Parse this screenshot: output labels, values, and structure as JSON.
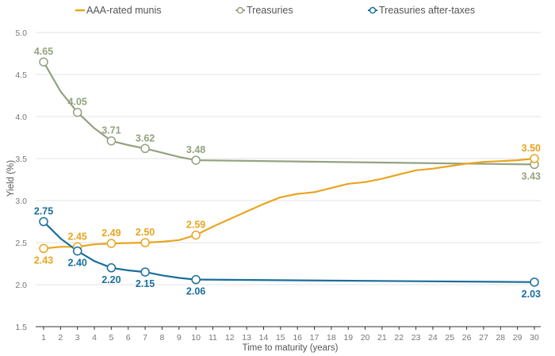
{
  "chart_data": {
    "type": "line",
    "title": "",
    "xlabel": "Time to maturity (years)",
    "ylabel": "Yield (%)",
    "xlim": [
      1,
      30
    ],
    "ylim": [
      1.5,
      5.0
    ],
    "x_ticks": [
      1,
      2,
      3,
      4,
      5,
      6,
      7,
      8,
      9,
      10,
      11,
      12,
      13,
      14,
      15,
      16,
      17,
      18,
      19,
      20,
      21,
      22,
      23,
      24,
      25,
      26,
      27,
      28,
      29,
      30
    ],
    "y_ticks": [
      "1.5",
      "2.0",
      "2.5",
      "3.0",
      "3.5",
      "4.0",
      "4.5",
      "5.0"
    ],
    "grid": "horizontal",
    "legend_position": "top",
    "series": [
      {
        "name": "AAA-rated munis",
        "color": "#E9A520",
        "marker": "line",
        "x": [
          1,
          2,
          3,
          4,
          5,
          6,
          7,
          8,
          9,
          10,
          11,
          12,
          13,
          14,
          15,
          16,
          17,
          18,
          19,
          20,
          21,
          22,
          23,
          24,
          25,
          26,
          27,
          28,
          29,
          30
        ],
        "values": [
          2.43,
          2.45,
          2.45,
          2.48,
          2.49,
          2.495,
          2.5,
          2.51,
          2.53,
          2.59,
          2.69,
          2.78,
          2.87,
          2.96,
          3.04,
          3.08,
          3.1,
          3.15,
          3.2,
          3.22,
          3.26,
          3.31,
          3.36,
          3.38,
          3.41,
          3.44,
          3.46,
          3.47,
          3.48,
          3.5
        ],
        "labeled_points": [
          {
            "x": 1,
            "value": "2.43",
            "pos": "below"
          },
          {
            "x": 3,
            "value": "2.45",
            "pos": "above"
          },
          {
            "x": 5,
            "value": "2.49",
            "pos": "above"
          },
          {
            "x": 7,
            "value": "2.50",
            "pos": "above"
          },
          {
            "x": 10,
            "value": "2.59",
            "pos": "above"
          },
          {
            "x": 30,
            "value": "3.50",
            "pos": "above"
          }
        ]
      },
      {
        "name": "Treasuries",
        "color": "#93A27F",
        "marker": "circle",
        "x": [
          1,
          2,
          3,
          4,
          5,
          6,
          7,
          8,
          9,
          10,
          30
        ],
        "values": [
          4.65,
          4.3,
          4.05,
          3.86,
          3.71,
          3.66,
          3.62,
          3.57,
          3.52,
          3.48,
          3.43
        ],
        "labeled_points": [
          {
            "x": 1,
            "value": "4.65",
            "pos": "above"
          },
          {
            "x": 3,
            "value": "4.05",
            "pos": "above"
          },
          {
            "x": 5,
            "value": "3.71",
            "pos": "above"
          },
          {
            "x": 7,
            "value": "3.62",
            "pos": "above"
          },
          {
            "x": 10,
            "value": "3.48",
            "pos": "above"
          },
          {
            "x": 30,
            "value": "3.43",
            "pos": "below"
          }
        ]
      },
      {
        "name": "Treasuries after-taxes",
        "color": "#1A6E9A",
        "marker": "circle",
        "x": [
          1,
          2,
          3,
          4,
          5,
          6,
          7,
          8,
          9,
          10,
          30
        ],
        "values": [
          2.75,
          2.55,
          2.4,
          2.28,
          2.2,
          2.17,
          2.15,
          2.11,
          2.08,
          2.06,
          2.03
        ],
        "labeled_points": [
          {
            "x": 1,
            "value": "2.75",
            "pos": "above"
          },
          {
            "x": 3,
            "value": "2.40",
            "pos": "below"
          },
          {
            "x": 5,
            "value": "2.20",
            "pos": "below"
          },
          {
            "x": 7,
            "value": "2.15",
            "pos": "below"
          },
          {
            "x": 10,
            "value": "2.06",
            "pos": "below"
          },
          {
            "x": 30,
            "value": "2.03",
            "pos": "below"
          }
        ]
      }
    ]
  }
}
